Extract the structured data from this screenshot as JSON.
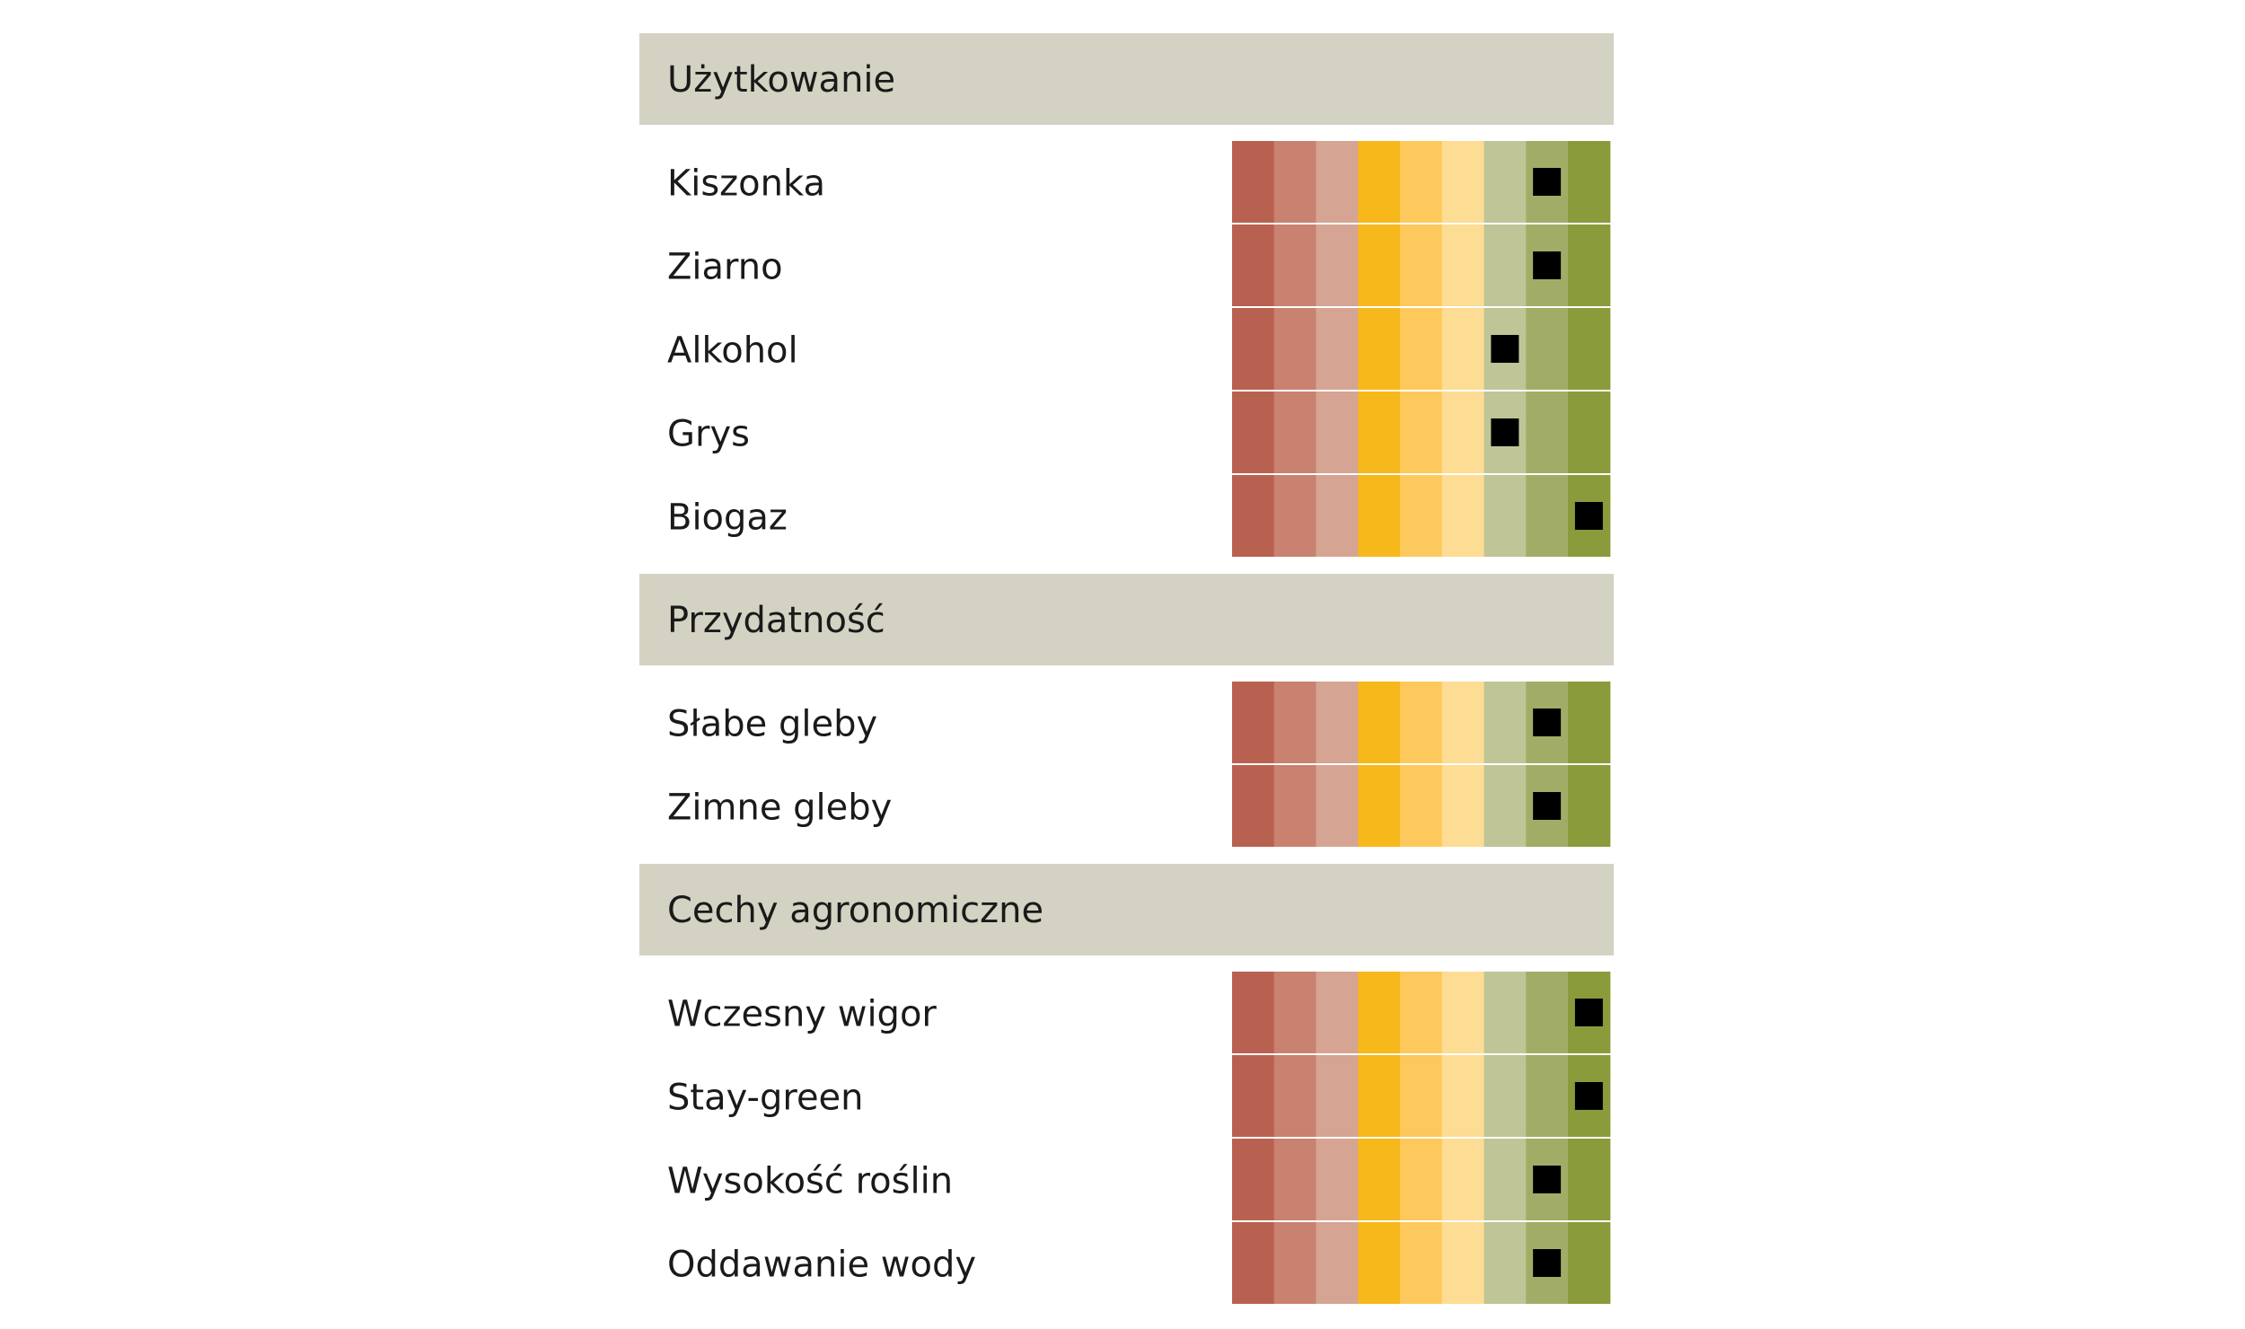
{
  "chart_data": {
    "type": "table",
    "scale_levels": 9,
    "scale_colors": [
      "#b96150",
      "#c98270",
      "#d6a493",
      "#f7b81b",
      "#fdc95c",
      "#fddc94",
      "#bfc596",
      "#a1ad66",
      "#8a9b3b"
    ],
    "header_color": "#d4d2c2",
    "marker_color": "#000000",
    "sections": [
      {
        "title": "Użytkowanie",
        "rows": [
          {
            "label": "Kiszonka",
            "value": 8
          },
          {
            "label": "Ziarno",
            "value": 8
          },
          {
            "label": "Alkohol",
            "value": 7
          },
          {
            "label": "Grys",
            "value": 7
          },
          {
            "label": "Biogaz",
            "value": 9
          }
        ]
      },
      {
        "title": "Przydatność",
        "rows": [
          {
            "label": "Słabe gleby",
            "value": 8
          },
          {
            "label": "Zimne gleby",
            "value": 8
          }
        ]
      },
      {
        "title": "Cechy agronomiczne",
        "rows": [
          {
            "label": "Wczesny wigor",
            "value": 9
          },
          {
            "label": "Stay-green",
            "value": 9
          },
          {
            "label": "Wysokość roślin",
            "value": 8
          },
          {
            "label": "Oddawanie wody",
            "value": 8
          }
        ]
      }
    ]
  }
}
